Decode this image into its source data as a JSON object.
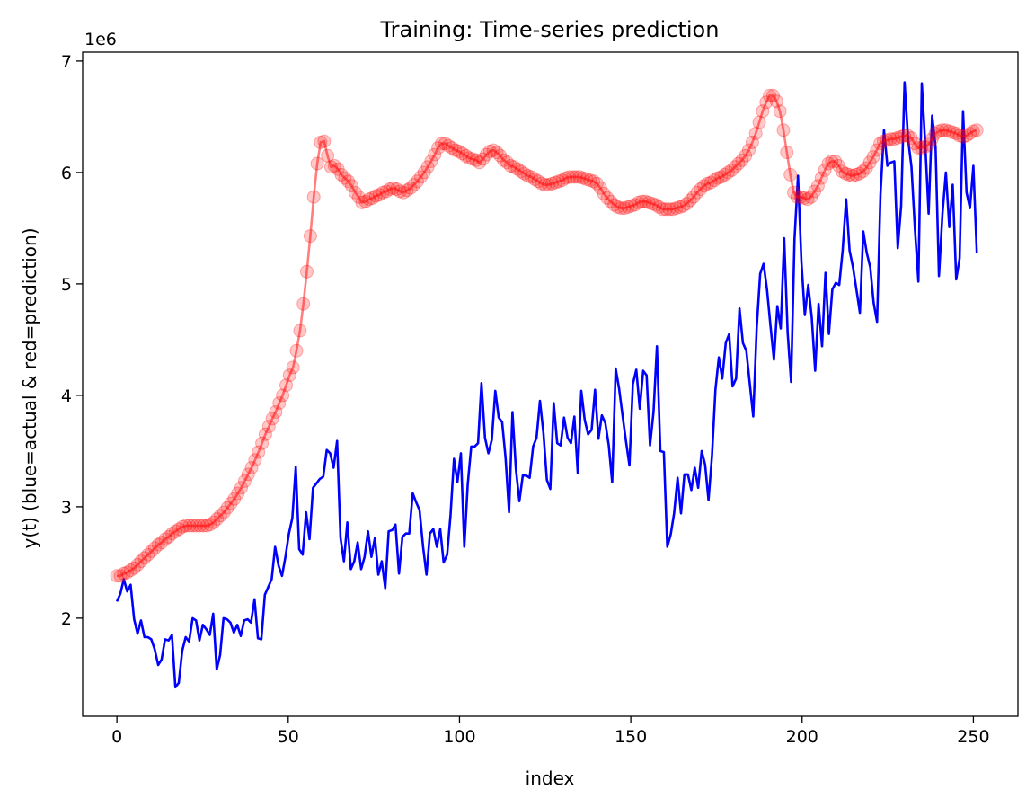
{
  "chart_data": {
    "type": "line",
    "title": "Training: Time-series prediction",
    "xlabel": "index",
    "ylabel": "y(t) (blue=actual & red=prediction)",
    "y_offset_label": "1e6",
    "xlim": [
      -10,
      263
    ],
    "ylim": [
      1.12,
      7.08
    ],
    "x_ticks": [
      0,
      50,
      100,
      150,
      200,
      250
    ],
    "y_ticks": [
      2,
      3,
      4,
      5,
      6,
      7
    ],
    "grid": false,
    "legend": "none",
    "colors": {
      "actual": "#0000ff",
      "prediction": "#ff0000"
    },
    "series": [
      {
        "key": "actual",
        "x_range": [
          0,
          251
        ],
        "y": [
          2.15,
          2.22,
          2.35,
          2.24,
          2.3,
          1.99,
          1.86,
          1.98,
          1.83,
          1.83,
          1.81,
          1.72,
          1.58,
          1.63,
          1.81,
          1.8,
          1.85,
          1.38,
          1.42,
          1.71,
          1.83,
          1.79,
          2.0,
          1.98,
          1.8,
          1.94,
          1.9,
          1.85,
          2.04,
          1.54,
          1.67,
          2.0,
          1.99,
          1.96,
          1.87,
          1.94,
          1.84,
          1.98,
          1.99,
          1.96,
          2.17,
          1.82,
          1.81,
          2.21,
          2.28,
          2.35,
          2.64,
          2.47,
          2.38,
          2.55,
          2.76,
          2.9,
          3.36,
          2.62,
          2.57,
          2.95,
          2.71,
          3.17,
          3.21,
          3.25,
          3.27,
          3.51,
          3.48,
          3.35,
          3.59,
          2.72,
          2.51,
          2.86,
          2.44,
          2.51,
          2.68,
          2.44,
          2.55,
          2.78,
          2.55,
          2.72,
          2.39,
          2.51,
          2.27,
          2.78,
          2.79,
          2.84,
          2.4,
          2.73,
          2.76,
          2.76,
          3.12,
          3.04,
          2.97,
          2.64,
          2.39,
          2.76,
          2.8,
          2.64,
          2.8,
          2.5,
          2.57,
          2.93,
          3.43,
          3.22,
          3.48,
          2.64,
          3.2,
          3.54,
          3.54,
          3.57,
          4.11,
          3.62,
          3.48,
          3.6,
          4.04,
          3.8,
          3.76,
          3.44,
          2.95,
          3.85,
          3.34,
          3.05,
          3.28,
          3.28,
          3.26,
          3.54,
          3.62,
          3.95,
          3.66,
          3.24,
          3.16,
          3.93,
          3.57,
          3.55,
          3.8,
          3.62,
          3.57,
          3.81,
          3.3,
          4.04,
          3.78,
          3.65,
          3.69,
          4.05,
          3.61,
          3.82,
          3.75,
          3.55,
          3.22,
          4.24,
          4.06,
          3.82,
          3.59,
          3.37,
          4.1,
          4.23,
          3.88,
          4.22,
          4.18,
          3.55,
          3.85,
          4.44,
          3.5,
          3.49,
          2.64,
          2.75,
          2.94,
          3.26,
          2.94,
          3.29,
          3.29,
          3.15,
          3.35,
          3.17,
          3.5,
          3.38,
          3.06,
          3.46,
          4.05,
          4.34,
          4.15,
          4.47,
          4.55,
          4.08,
          4.15,
          4.78,
          4.47,
          4.4,
          4.1,
          3.81,
          4.6,
          5.09,
          5.18,
          4.95,
          4.63,
          4.32,
          4.8,
          4.6,
          5.41,
          4.56,
          4.12,
          5.4,
          5.97,
          5.2,
          4.72,
          4.99,
          4.7,
          4.22,
          4.82,
          4.44,
          5.1,
          4.55,
          4.95,
          5.01,
          4.99,
          5.3,
          5.76,
          5.3,
          5.15,
          4.95,
          4.74,
          5.47,
          5.28,
          5.15,
          4.83,
          4.66,
          5.8,
          6.38,
          6.06,
          6.09,
          6.1,
          5.32,
          5.7,
          6.81,
          6.3,
          6.05,
          5.5,
          5.02,
          6.8,
          6.26,
          5.63,
          6.51,
          6.23,
          5.07,
          5.63,
          6.0,
          5.51,
          5.89,
          5.04,
          5.23,
          6.55,
          5.82,
          5.68,
          6.06,
          5.28
        ]
      },
      {
        "key": "prediction",
        "x_range": [
          0,
          251
        ],
        "y": [
          2.38,
          2.38,
          2.4,
          2.41,
          2.43,
          2.45,
          2.48,
          2.51,
          2.54,
          2.57,
          2.6,
          2.63,
          2.66,
          2.68,
          2.71,
          2.73,
          2.76,
          2.78,
          2.8,
          2.82,
          2.83,
          2.83,
          2.83,
          2.83,
          2.83,
          2.83,
          2.83,
          2.84,
          2.86,
          2.89,
          2.92,
          2.95,
          2.99,
          3.03,
          3.07,
          3.12,
          3.17,
          3.23,
          3.29,
          3.35,
          3.42,
          3.49,
          3.57,
          3.65,
          3.72,
          3.79,
          3.85,
          3.93,
          4.0,
          4.09,
          4.18,
          4.25,
          4.4,
          4.58,
          4.82,
          5.11,
          5.43,
          5.78,
          6.08,
          6.27,
          6.28,
          6.15,
          6.05,
          6.06,
          6.03,
          5.98,
          5.95,
          5.92,
          5.88,
          5.82,
          5.78,
          5.73,
          5.74,
          5.76,
          5.77,
          5.79,
          5.8,
          5.82,
          5.83,
          5.85,
          5.86,
          5.85,
          5.83,
          5.82,
          5.84,
          5.86,
          5.89,
          5.92,
          5.96,
          6.0,
          6.05,
          6.1,
          6.16,
          6.22,
          6.26,
          6.26,
          6.24,
          6.22,
          6.2,
          6.19,
          6.17,
          6.15,
          6.13,
          6.12,
          6.11,
          6.09,
          6.12,
          6.16,
          6.19,
          6.2,
          6.18,
          6.15,
          6.11,
          6.09,
          6.06,
          6.05,
          6.03,
          6.01,
          5.99,
          5.97,
          5.96,
          5.94,
          5.92,
          5.9,
          5.89,
          5.89,
          5.9,
          5.91,
          5.92,
          5.93,
          5.95,
          5.96,
          5.96,
          5.96,
          5.96,
          5.95,
          5.94,
          5.93,
          5.92,
          5.9,
          5.86,
          5.81,
          5.77,
          5.74,
          5.71,
          5.69,
          5.68,
          5.68,
          5.69,
          5.7,
          5.71,
          5.73,
          5.74,
          5.74,
          5.73,
          5.72,
          5.71,
          5.69,
          5.67,
          5.67,
          5.67,
          5.67,
          5.68,
          5.69,
          5.7,
          5.72,
          5.75,
          5.78,
          5.82,
          5.85,
          5.88,
          5.9,
          5.91,
          5.93,
          5.95,
          5.96,
          5.98,
          6.0,
          6.02,
          6.05,
          6.08,
          6.11,
          6.15,
          6.2,
          6.27,
          6.35,
          6.45,
          6.55,
          6.63,
          6.69,
          6.69,
          6.64,
          6.55,
          6.38,
          6.18,
          5.98,
          5.82,
          5.78,
          5.78,
          5.77,
          5.76,
          5.78,
          5.83,
          5.88,
          5.95,
          6.02,
          6.08,
          6.1,
          6.1,
          6.06,
          6.01,
          5.99,
          5.98,
          5.97,
          5.98,
          5.99,
          6.01,
          6.04,
          6.09,
          6.14,
          6.2,
          6.26,
          6.28,
          6.29,
          6.3,
          6.3,
          6.31,
          6.32,
          6.33,
          6.33,
          6.31,
          6.26,
          6.22,
          6.22,
          6.23,
          6.25,
          6.3,
          6.35,
          6.37,
          6.38,
          6.38,
          6.37,
          6.36,
          6.35,
          6.33,
          6.32,
          6.33,
          6.35,
          6.37,
          6.38
        ]
      }
    ]
  }
}
